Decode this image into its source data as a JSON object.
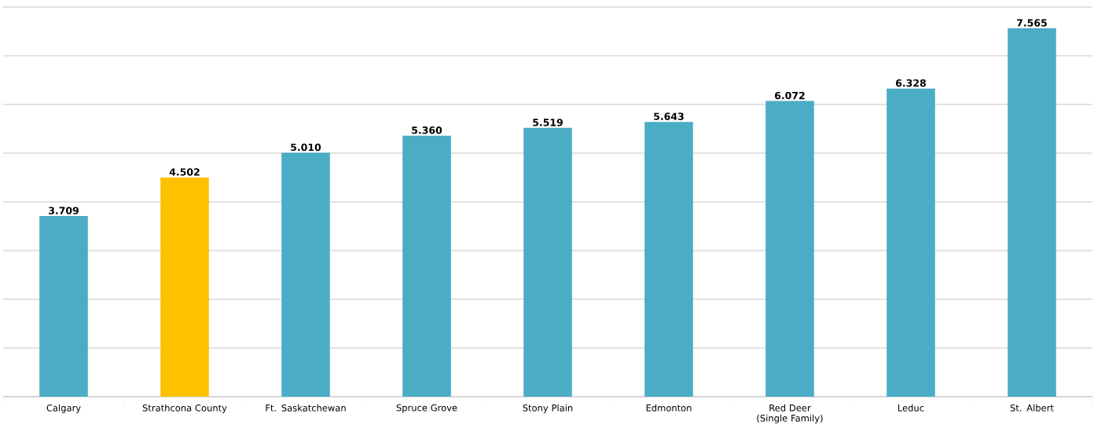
{
  "chart_data": {
    "type": "bar",
    "categories": [
      "Calgary",
      "Strathcona County",
      "Ft. Saskatchewan",
      "Spruce Grove",
      "Stony Plain",
      "Edmonton",
      "Red Deer (Single Family)",
      "Leduc",
      "St. Albert"
    ],
    "values": [
      3.709,
      4.502,
      5.01,
      5.36,
      5.519,
      5.643,
      6.072,
      6.328,
      7.565
    ],
    "value_labels": [
      "3.709",
      "4.502",
      "5.010",
      "5.360",
      "5.519",
      "5.643",
      "6.072",
      "6.328",
      "7.565"
    ],
    "colors": [
      "#4bacc6",
      "#ffc000",
      "#4bacc6",
      "#4bacc6",
      "#4bacc6",
      "#4bacc6",
      "#4bacc6",
      "#4bacc6",
      "#4bacc6"
    ],
    "ylim": [
      0,
      8
    ],
    "grid": "y",
    "tick_labels": "x"
  }
}
